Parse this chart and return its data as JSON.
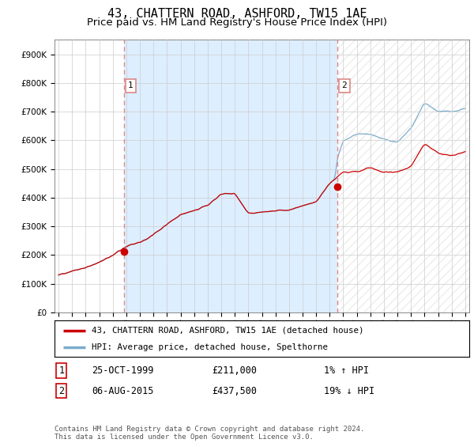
{
  "title": "43, CHATTERN ROAD, ASHFORD, TW15 1AE",
  "subtitle": "Price paid vs. HM Land Registry's House Price Index (HPI)",
  "ytick_values": [
    0,
    100000,
    200000,
    300000,
    400000,
    500000,
    600000,
    700000,
    800000,
    900000
  ],
  "ylim": [
    0,
    950000
  ],
  "xlim_start": 1994.7,
  "xlim_end": 2025.3,
  "sale1_date": 1999.82,
  "sale1_price": 211000,
  "sale2_date": 2015.59,
  "sale2_price": 437500,
  "sale1_label": "1",
  "sale2_label": "2",
  "line_color_red": "#cc0000",
  "line_color_blue": "#7aaccc",
  "vline_color": "#dd8888",
  "marker_color": "#cc0000",
  "fill_color": "#ddeeff",
  "legend_line1": "43, CHATTERN ROAD, ASHFORD, TW15 1AE (detached house)",
  "legend_line2": "HPI: Average price, detached house, Spelthorne",
  "table_row1": [
    "1",
    "25-OCT-1999",
    "£211,000",
    "1% ↑ HPI"
  ],
  "table_row2": [
    "2",
    "06-AUG-2015",
    "£437,500",
    "19% ↓ HPI"
  ],
  "footer": "Contains HM Land Registry data © Crown copyright and database right 2024.\nThis data is licensed under the Open Government Licence v3.0.",
  "background_color": "#ffffff",
  "grid_color": "#cccccc",
  "title_fontsize": 11,
  "subtitle_fontsize": 9.5,
  "tick_fontsize": 7.5
}
